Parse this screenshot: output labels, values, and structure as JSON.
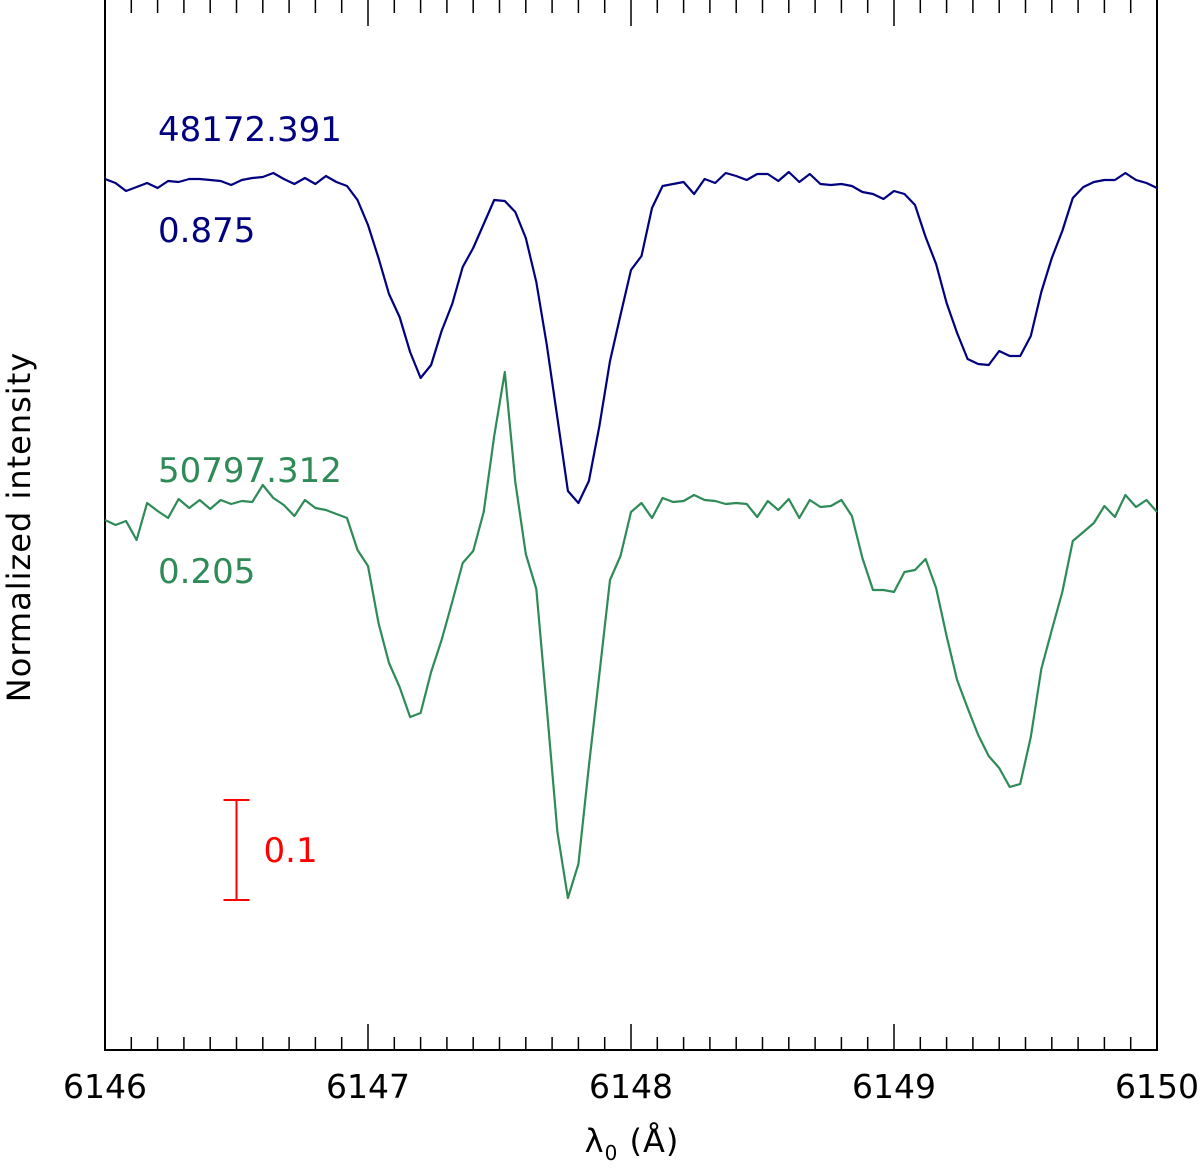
{
  "chart_data": {
    "type": "line",
    "title": "",
    "xlabel": "λ₀  (Å)",
    "ylabel": "Normalized intensity",
    "xlim": [
      6146,
      6150
    ],
    "ylim": [
      0,
      1.05
    ],
    "x_tick_labels": [
      "6146",
      "6147",
      "6148",
      "6149",
      "6150"
    ],
    "grid": false,
    "series": [
      {
        "color": "#000080",
        "label_hjd": "48172.391",
        "label_phase": "0.875",
        "points": [
          [
            6146.0,
            0.871
          ],
          [
            6146.04,
            0.867
          ],
          [
            6146.08,
            0.859
          ],
          [
            6146.12,
            0.863
          ],
          [
            6146.16,
            0.867
          ],
          [
            6146.2,
            0.862
          ],
          [
            6146.24,
            0.869
          ],
          [
            6146.28,
            0.868
          ],
          [
            6146.32,
            0.871
          ],
          [
            6146.36,
            0.871
          ],
          [
            6146.4,
            0.87
          ],
          [
            6146.44,
            0.869
          ],
          [
            6146.48,
            0.865
          ],
          [
            6146.52,
            0.87
          ],
          [
            6146.56,
            0.872
          ],
          [
            6146.6,
            0.873
          ],
          [
            6146.64,
            0.877
          ],
          [
            6146.68,
            0.871
          ],
          [
            6146.72,
            0.866
          ],
          [
            6146.76,
            0.872
          ],
          [
            6146.8,
            0.866
          ],
          [
            6146.84,
            0.874
          ],
          [
            6146.88,
            0.868
          ],
          [
            6146.92,
            0.864
          ],
          [
            6146.96,
            0.85
          ],
          [
            6147.0,
            0.825
          ],
          [
            6147.04,
            0.792
          ],
          [
            6147.08,
            0.756
          ],
          [
            6147.12,
            0.733
          ],
          [
            6147.16,
            0.698
          ],
          [
            6147.2,
            0.672
          ],
          [
            6147.24,
            0.685
          ],
          [
            6147.28,
            0.719
          ],
          [
            6147.32,
            0.746
          ],
          [
            6147.36,
            0.783
          ],
          [
            6147.4,
            0.802
          ],
          [
            6147.44,
            0.826
          ],
          [
            6147.48,
            0.85
          ],
          [
            6147.52,
            0.849
          ],
          [
            6147.56,
            0.838
          ],
          [
            6147.6,
            0.812
          ],
          [
            6147.64,
            0.768
          ],
          [
            6147.68,
            0.705
          ],
          [
            6147.72,
            0.632
          ],
          [
            6147.76,
            0.559
          ],
          [
            6147.8,
            0.547
          ],
          [
            6147.84,
            0.569
          ],
          [
            6147.88,
            0.624
          ],
          [
            6147.92,
            0.689
          ],
          [
            6147.96,
            0.735
          ],
          [
            6148.0,
            0.78
          ],
          [
            6148.04,
            0.794
          ],
          [
            6148.08,
            0.842
          ],
          [
            6148.12,
            0.864
          ],
          [
            6148.16,
            0.866
          ],
          [
            6148.2,
            0.868
          ],
          [
            6148.24,
            0.856
          ],
          [
            6148.28,
            0.871
          ],
          [
            6148.32,
            0.867
          ],
          [
            6148.36,
            0.877
          ],
          [
            6148.4,
            0.874
          ],
          [
            6148.44,
            0.87
          ],
          [
            6148.48,
            0.876
          ],
          [
            6148.52,
            0.876
          ],
          [
            6148.56,
            0.869
          ],
          [
            6148.6,
            0.878
          ],
          [
            6148.64,
            0.868
          ],
          [
            6148.68,
            0.876
          ],
          [
            6148.72,
            0.866
          ],
          [
            6148.76,
            0.865
          ],
          [
            6148.8,
            0.866
          ],
          [
            6148.84,
            0.864
          ],
          [
            6148.88,
            0.858
          ],
          [
            6148.92,
            0.856
          ],
          [
            6148.96,
            0.851
          ],
          [
            6149.0,
            0.859
          ],
          [
            6149.04,
            0.856
          ],
          [
            6149.08,
            0.845
          ],
          [
            6149.12,
            0.813
          ],
          [
            6149.16,
            0.786
          ],
          [
            6149.2,
            0.747
          ],
          [
            6149.24,
            0.717
          ],
          [
            6149.28,
            0.691
          ],
          [
            6149.32,
            0.686
          ],
          [
            6149.36,
            0.685
          ],
          [
            6149.4,
            0.699
          ],
          [
            6149.44,
            0.694
          ],
          [
            6149.48,
            0.694
          ],
          [
            6149.52,
            0.714
          ],
          [
            6149.56,
            0.758
          ],
          [
            6149.6,
            0.792
          ],
          [
            6149.64,
            0.819
          ],
          [
            6149.68,
            0.852
          ],
          [
            6149.72,
            0.863
          ],
          [
            6149.76,
            0.868
          ],
          [
            6149.8,
            0.87
          ],
          [
            6149.84,
            0.87
          ],
          [
            6149.88,
            0.877
          ],
          [
            6149.92,
            0.87
          ],
          [
            6149.96,
            0.867
          ],
          [
            6150.0,
            0.862
          ]
        ]
      },
      {
        "color": "#2e8b57",
        "label_hjd": "50797.312",
        "label_phase": "0.205",
        "points": [
          [
            6146.0,
            0.53
          ],
          [
            6146.04,
            0.525
          ],
          [
            6146.08,
            0.529
          ],
          [
            6146.12,
            0.51
          ],
          [
            6146.16,
            0.547
          ],
          [
            6146.2,
            0.539
          ],
          [
            6146.24,
            0.532
          ],
          [
            6146.28,
            0.551
          ],
          [
            6146.32,
            0.542
          ],
          [
            6146.36,
            0.55
          ],
          [
            6146.4,
            0.541
          ],
          [
            6146.44,
            0.55
          ],
          [
            6146.48,
            0.546
          ],
          [
            6146.52,
            0.549
          ],
          [
            6146.56,
            0.548
          ],
          [
            6146.6,
            0.565
          ],
          [
            6146.64,
            0.552
          ],
          [
            6146.68,
            0.545
          ],
          [
            6146.72,
            0.534
          ],
          [
            6146.76,
            0.55
          ],
          [
            6146.8,
            0.542
          ],
          [
            6146.84,
            0.54
          ],
          [
            6146.88,
            0.536
          ],
          [
            6146.92,
            0.532
          ],
          [
            6146.96,
            0.5
          ],
          [
            6147.0,
            0.484
          ],
          [
            6147.04,
            0.427
          ],
          [
            6147.08,
            0.387
          ],
          [
            6147.12,
            0.363
          ],
          [
            6147.16,
            0.333
          ],
          [
            6147.2,
            0.337
          ],
          [
            6147.24,
            0.378
          ],
          [
            6147.28,
            0.41
          ],
          [
            6147.32,
            0.448
          ],
          [
            6147.36,
            0.487
          ],
          [
            6147.4,
            0.499
          ],
          [
            6147.44,
            0.538
          ],
          [
            6147.48,
            0.614
          ],
          [
            6147.52,
            0.678
          ],
          [
            6147.56,
            0.568
          ],
          [
            6147.6,
            0.496
          ],
          [
            6147.64,
            0.461
          ],
          [
            6147.68,
            0.342
          ],
          [
            6147.72,
            0.218
          ],
          [
            6147.76,
            0.152
          ],
          [
            6147.8,
            0.186
          ],
          [
            6147.84,
            0.284
          ],
          [
            6147.88,
            0.376
          ],
          [
            6147.92,
            0.47
          ],
          [
            6147.96,
            0.494
          ],
          [
            6148.0,
            0.538
          ],
          [
            6148.04,
            0.547
          ],
          [
            6148.08,
            0.532
          ],
          [
            6148.12,
            0.552
          ],
          [
            6148.16,
            0.548
          ],
          [
            6148.2,
            0.549
          ],
          [
            6148.24,
            0.555
          ],
          [
            6148.28,
            0.55
          ],
          [
            6148.32,
            0.549
          ],
          [
            6148.36,
            0.546
          ],
          [
            6148.4,
            0.547
          ],
          [
            6148.44,
            0.546
          ],
          [
            6148.48,
            0.533
          ],
          [
            6148.52,
            0.549
          ],
          [
            6148.56,
            0.54
          ],
          [
            6148.6,
            0.551
          ],
          [
            6148.64,
            0.532
          ],
          [
            6148.68,
            0.55
          ],
          [
            6148.72,
            0.543
          ],
          [
            6148.76,
            0.544
          ],
          [
            6148.8,
            0.55
          ],
          [
            6148.84,
            0.534
          ],
          [
            6148.88,
            0.492
          ],
          [
            6148.92,
            0.46
          ],
          [
            6148.96,
            0.46
          ],
          [
            6149.0,
            0.458
          ],
          [
            6149.04,
            0.478
          ],
          [
            6149.08,
            0.48
          ],
          [
            6149.12,
            0.491
          ],
          [
            6149.16,
            0.462
          ],
          [
            6149.2,
            0.414
          ],
          [
            6149.24,
            0.37
          ],
          [
            6149.28,
            0.342
          ],
          [
            6149.32,
            0.315
          ],
          [
            6149.36,
            0.294
          ],
          [
            6149.4,
            0.282
          ],
          [
            6149.44,
            0.263
          ],
          [
            6149.48,
            0.266
          ],
          [
            6149.52,
            0.313
          ],
          [
            6149.56,
            0.381
          ],
          [
            6149.6,
            0.42
          ],
          [
            6149.64,
            0.458
          ],
          [
            6149.68,
            0.509
          ],
          [
            6149.72,
            0.518
          ],
          [
            6149.76,
            0.527
          ],
          [
            6149.8,
            0.544
          ],
          [
            6149.84,
            0.533
          ],
          [
            6149.88,
            0.555
          ],
          [
            6149.92,
            0.543
          ],
          [
            6149.96,
            0.55
          ],
          [
            6150.0,
            0.538
          ]
        ]
      }
    ],
    "annotations": {
      "scale_bar_label": "0.1",
      "scale_bar_size": 0.1,
      "scale_bar_center": [
        6146.5,
        0.2
      ],
      "scale_bar_color": "#ff0000"
    }
  }
}
